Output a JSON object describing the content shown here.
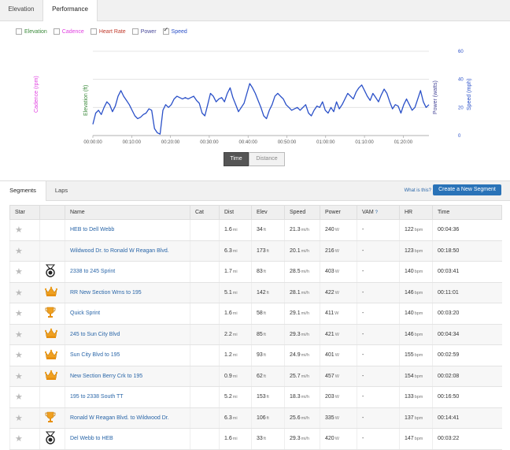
{
  "top_tabs": [
    "Elevation",
    "Performance"
  ],
  "legend": [
    {
      "label": "Elevation",
      "color": "#3b8a3b",
      "checked": false
    },
    {
      "label": "Cadence",
      "color": "#e040e0",
      "checked": false
    },
    {
      "label": "Heart Rate",
      "color": "#c0392b",
      "checked": false
    },
    {
      "label": "Power",
      "color": "#4a4a9a",
      "checked": false
    },
    {
      "label": "Speed",
      "color": "#2a50c8",
      "checked": true
    }
  ],
  "chart_data": {
    "type": "line",
    "series": [
      {
        "name": "Speed",
        "values": [
          8,
          16,
          18,
          15,
          20,
          24,
          22,
          17,
          21,
          28,
          32,
          28,
          25,
          22,
          18,
          14,
          12,
          13,
          15,
          16,
          19,
          18,
          5,
          2,
          1,
          18,
          22,
          20,
          22,
          26,
          28,
          27,
          26,
          27,
          26,
          27,
          28,
          25,
          23,
          16,
          14,
          22,
          30,
          28,
          24,
          26,
          27,
          24,
          30,
          34,
          27,
          22,
          17,
          20,
          23,
          30,
          37,
          34,
          30,
          25,
          20,
          14,
          12,
          18,
          22,
          28,
          30,
          28,
          26,
          22,
          20,
          18,
          19,
          20,
          18,
          20,
          22,
          16,
          14,
          18,
          21,
          20,
          24,
          18,
          16,
          20,
          17,
          24,
          19,
          22,
          26,
          30,
          28,
          26,
          31,
          34,
          36,
          32,
          28,
          25,
          30,
          27,
          24,
          29,
          33,
          30,
          24,
          19,
          22,
          21,
          16,
          22,
          26,
          22,
          18,
          20,
          26,
          32,
          24,
          20,
          22
        ]
      }
    ],
    "x_ticks": [
      "00:00:00",
      "00:10:00",
      "00:20:00",
      "00:30:00",
      "00:40:00",
      "00:50:00",
      "01:00:00",
      "01:10:00",
      "01:20:00"
    ],
    "y_ticks_right": [
      "0",
      "20",
      "40",
      "60"
    ],
    "ylim": [
      0,
      60
    ],
    "axis_titles": {
      "cadence": "Cadence (rpm)",
      "elevation": "Elevation (ft)",
      "power": "Power (watts)",
      "speed": "Speed (mph)"
    }
  },
  "toggle": {
    "time": "Time",
    "distance": "Distance"
  },
  "seg_tabs": [
    "Segments",
    "Laps"
  ],
  "whatis": "What is this?",
  "create_btn": "Create a New Segment",
  "columns": [
    "Star",
    "",
    "Name",
    "Cat",
    "Dist",
    "Elev",
    "Speed",
    "Power",
    "VAM",
    "HR",
    "Time"
  ],
  "vam_help": "?",
  "rows": [
    {
      "medal": "",
      "name": "HEB to Dell Webb",
      "cat": "",
      "dist": "1.6",
      "dist_u": "mi",
      "elev": "34",
      "elev_u": "ft",
      "speed": "21.3",
      "speed_u": "mi/h",
      "power": "240",
      "power_u": "W",
      "vam": "-",
      "hr": "122",
      "hr_u": "bpm",
      "time": "00:04:36"
    },
    {
      "medal": "",
      "name": "Wildwood Dr. to Ronald W Reagan Blvd.",
      "cat": "",
      "dist": "6.3",
      "dist_u": "mi",
      "elev": "173",
      "elev_u": "ft",
      "speed": "20.1",
      "speed_u": "mi/h",
      "power": "216",
      "power_u": "W",
      "vam": "-",
      "hr": "123",
      "hr_u": "bpm",
      "time": "00:18:50"
    },
    {
      "medal": "pr",
      "name": "2338 to 245 Sprint",
      "cat": "",
      "dist": "1.7",
      "dist_u": "mi",
      "elev": "83",
      "elev_u": "ft",
      "speed": "28.5",
      "speed_u": "mi/h",
      "power": "403",
      "power_u": "W",
      "vam": "-",
      "hr": "140",
      "hr_u": "bpm",
      "time": "00:03:41"
    },
    {
      "medal": "crown",
      "name": "RR New Section Wms to 195",
      "cat": "",
      "dist": "5.1",
      "dist_u": "mi",
      "elev": "142",
      "elev_u": "ft",
      "speed": "28.1",
      "speed_u": "mi/h",
      "power": "422",
      "power_u": "W",
      "vam": "-",
      "hr": "146",
      "hr_u": "bpm",
      "time": "00:11:01"
    },
    {
      "medal": "cup",
      "name": "Quick Sprint",
      "cat": "",
      "dist": "1.6",
      "dist_u": "mi",
      "elev": "58",
      "elev_u": "ft",
      "speed": "29.1",
      "speed_u": "mi/h",
      "power": "411",
      "power_u": "W",
      "vam": "-",
      "hr": "140",
      "hr_u": "bpm",
      "time": "00:03:20"
    },
    {
      "medal": "crown",
      "name": "245 to Sun City Blvd",
      "cat": "",
      "dist": "2.2",
      "dist_u": "mi",
      "elev": "85",
      "elev_u": "ft",
      "speed": "29.3",
      "speed_u": "mi/h",
      "power": "421",
      "power_u": "W",
      "vam": "-",
      "hr": "146",
      "hr_u": "bpm",
      "time": "00:04:34"
    },
    {
      "medal": "crown",
      "name": "Sun City Blvd to 195",
      "cat": "",
      "dist": "1.2",
      "dist_u": "mi",
      "elev": "93",
      "elev_u": "ft",
      "speed": "24.9",
      "speed_u": "mi/h",
      "power": "401",
      "power_u": "W",
      "vam": "-",
      "hr": "155",
      "hr_u": "bpm",
      "time": "00:02:59"
    },
    {
      "medal": "crown",
      "name": "New Section Berry Crk to 195",
      "cat": "",
      "dist": "0.9",
      "dist_u": "mi",
      "elev": "62",
      "elev_u": "ft",
      "speed": "25.7",
      "speed_u": "mi/h",
      "power": "457",
      "power_u": "W",
      "vam": "-",
      "hr": "154",
      "hr_u": "bpm",
      "time": "00:02:08"
    },
    {
      "medal": "",
      "name": "195 to 2338 South TT",
      "cat": "",
      "dist": "5.2",
      "dist_u": "mi",
      "elev": "153",
      "elev_u": "ft",
      "speed": "18.3",
      "speed_u": "mi/h",
      "power": "203",
      "power_u": "W",
      "vam": "-",
      "hr": "133",
      "hr_u": "bpm",
      "time": "00:16:50"
    },
    {
      "medal": "cup",
      "name": "Ronald W Reagan Blvd. to Wildwood Dr.",
      "cat": "",
      "dist": "6.3",
      "dist_u": "mi",
      "elev": "106",
      "elev_u": "ft",
      "speed": "25.6",
      "speed_u": "mi/h",
      "power": "335",
      "power_u": "W",
      "vam": "-",
      "hr": "137",
      "hr_u": "bpm",
      "time": "00:14:41"
    },
    {
      "medal": "pr",
      "name": "Del Webb to HEB",
      "cat": "",
      "dist": "1.6",
      "dist_u": "mi",
      "elev": "33",
      "elev_u": "ft",
      "speed": "29.3",
      "speed_u": "mi/h",
      "power": "420",
      "power_u": "W",
      "vam": "-",
      "hr": "147",
      "hr_u": "bpm",
      "time": "00:03:22"
    }
  ]
}
